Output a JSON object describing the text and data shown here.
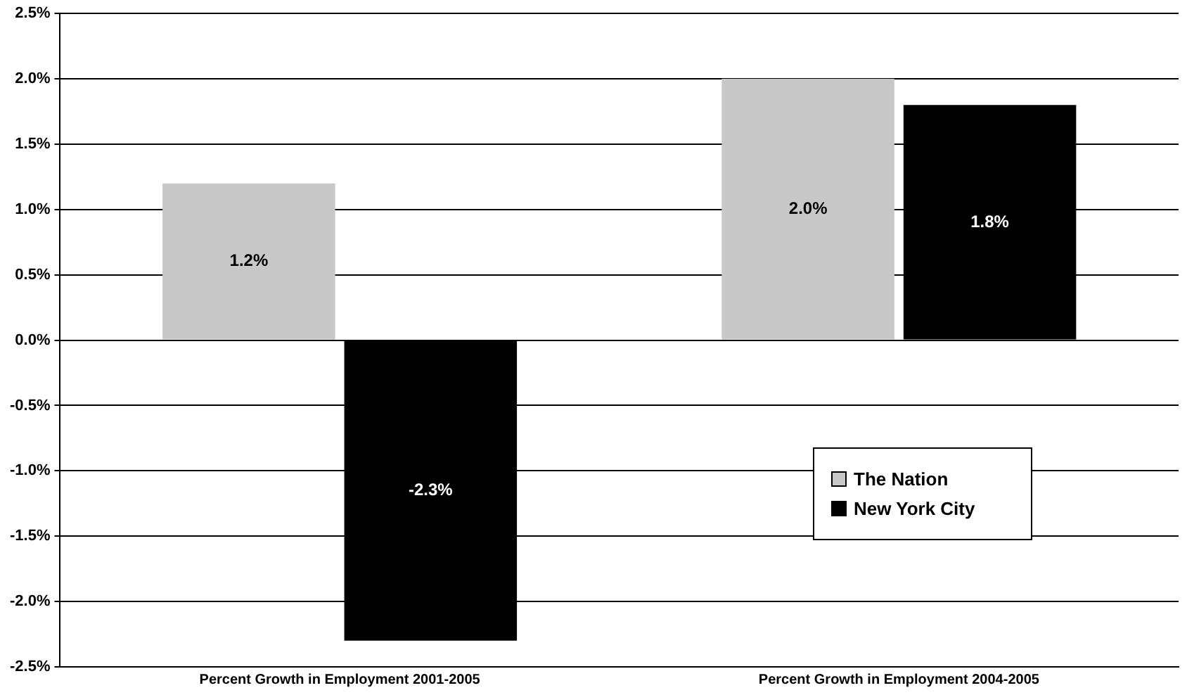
{
  "chart_data": {
    "type": "bar",
    "categories": [
      "Percent Growth in Employment 2001-2005",
      "Percent Growth in Employment 2004-2005"
    ],
    "series": [
      {
        "name": "The Nation",
        "color": "#c8c8c8",
        "values": [
          1.2,
          2.0
        ],
        "value_labels": [
          "1.2%",
          "2.0%"
        ]
      },
      {
        "name": "New York City",
        "color": "#000000",
        "values": [
          -2.3,
          1.8
        ],
        "value_labels": [
          "-2.3%",
          "1.8%"
        ]
      }
    ],
    "ylim": [
      -2.5,
      2.5
    ],
    "yticks": [
      {
        "value": -2.5,
        "label": "-2.5%"
      },
      {
        "value": -2.0,
        "label": "-2.0%"
      },
      {
        "value": -1.5,
        "label": "-1.5%"
      },
      {
        "value": -1.0,
        "label": "-1.0%"
      },
      {
        "value": -0.5,
        "label": "-0.5%"
      },
      {
        "value": 0,
        "label": "0.0%"
      },
      {
        "value": 0.5,
        "label": "0.5%"
      },
      {
        "value": 1.0,
        "label": "1.0%"
      },
      {
        "value": 1.5,
        "label": "1.5%"
      },
      {
        "value": 2.0,
        "label": "2.0%"
      },
      {
        "value": 2.5,
        "label": "2.5%"
      }
    ],
    "grid": "y",
    "legend": "bottom right"
  }
}
